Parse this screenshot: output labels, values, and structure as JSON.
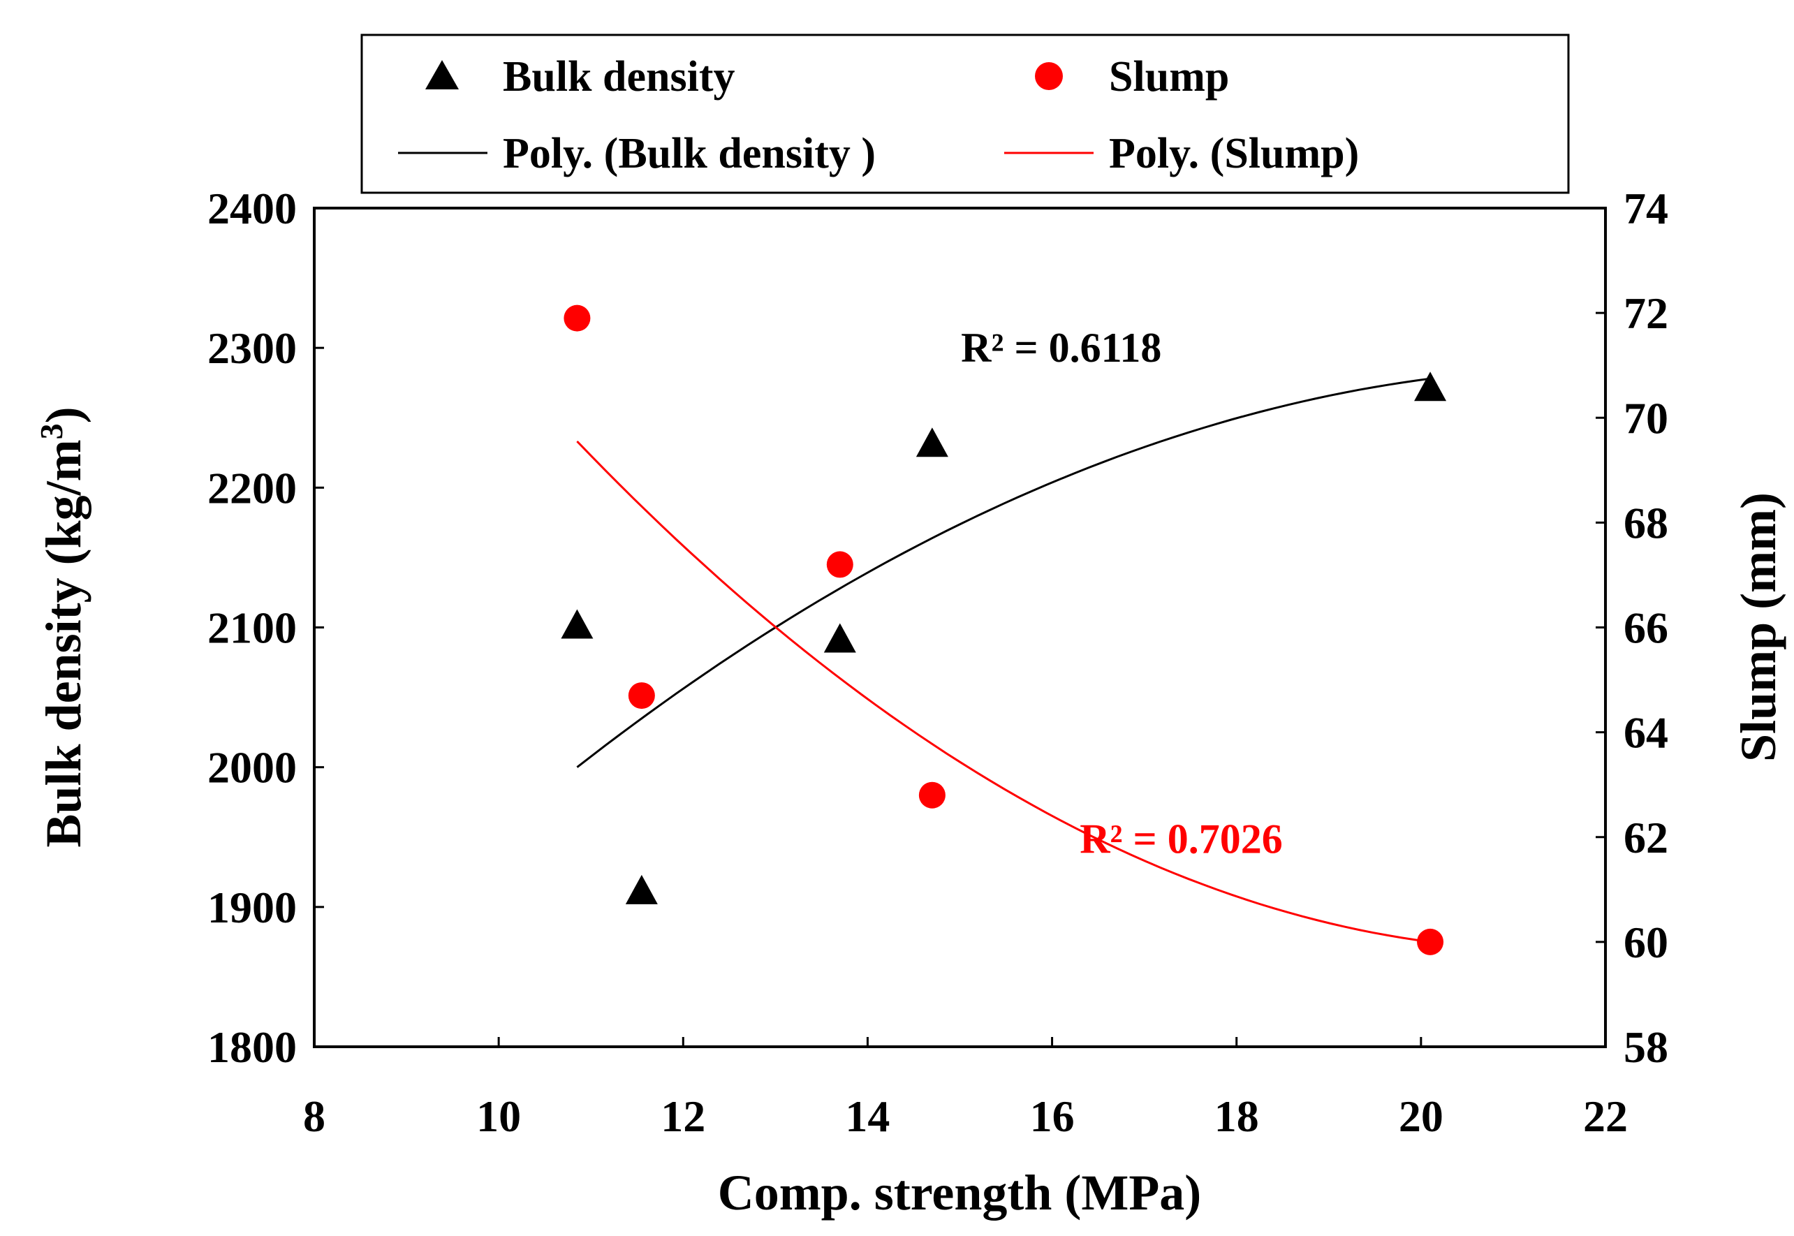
{
  "chart_data": {
    "type": "scatter",
    "xlabel": "Comp. strength (MPa)",
    "ylabel_left": "Bulk density (kg/m",
    "ylabel_left_sup": "3",
    "ylabel_left_close": ")",
    "ylabel_right": "Slump (mm)",
    "xlim": [
      8,
      22
    ],
    "ylim_left": [
      1800,
      2400
    ],
    "ylim_right": [
      58,
      74
    ],
    "x_ticks": [
      8,
      10,
      12,
      14,
      16,
      18,
      20,
      22
    ],
    "y_left_ticks": [
      1800,
      1900,
      2000,
      2100,
      2200,
      2300,
      2400
    ],
    "y_right_ticks": [
      58,
      60,
      62,
      64,
      66,
      68,
      70,
      72,
      74
    ],
    "legend": {
      "placement": "top",
      "entries": [
        {
          "key": "bulk",
          "label": "Bulk density",
          "kind": "marker-triangle",
          "color": "#000000"
        },
        {
          "key": "slump",
          "label": "Slump",
          "kind": "marker-circle",
          "color": "#ff0000"
        },
        {
          "key": "bulk_fit",
          "label": "Poly. (Bulk density )",
          "kind": "line",
          "color": "#000000"
        },
        {
          "key": "slump_fit",
          "label": "Poly. (Slump)",
          "kind": "line",
          "color": "#ff0000"
        }
      ]
    },
    "series": [
      {
        "name": "Bulk density",
        "axis": "left",
        "marker": "triangle",
        "color": "#000000",
        "x": [
          10.85,
          11.55,
          13.7,
          14.7,
          20.1
        ],
        "y": [
          2100,
          1910,
          2090,
          2230,
          2270
        ]
      },
      {
        "name": "Slump",
        "axis": "right",
        "marker": "circle",
        "color": "#ff0000",
        "x": [
          10.85,
          11.55,
          13.7,
          14.7,
          20.1
        ],
        "y": [
          71.9,
          64.7,
          67.2,
          62.8,
          60.0
        ]
      }
    ],
    "trendlines": [
      {
        "name": "Poly. (Bulk density )",
        "axis": "left",
        "color": "#000000",
        "order": 2,
        "x_range": [
          10.85,
          20.1
        ],
        "points": [
          [
            10.85,
            2000
          ],
          [
            13.0,
            2100
          ],
          [
            20.1,
            2278
          ]
        ],
        "r2_label": "R² = 0.6118",
        "r2_anchor": [
          16.1,
          2290
        ]
      },
      {
        "name": "Poly. (Slump)",
        "axis": "right",
        "color": "#ff0000",
        "order": 2,
        "x_range": [
          10.85,
          20.1
        ],
        "points": [
          [
            10.85,
            69.55
          ],
          [
            13.5,
            65.3
          ],
          [
            20.1,
            60.0
          ]
        ],
        "r2_label": "R² = 0.7026",
        "r2_anchor": [
          17.4,
          61.7
        ]
      }
    ]
  }
}
